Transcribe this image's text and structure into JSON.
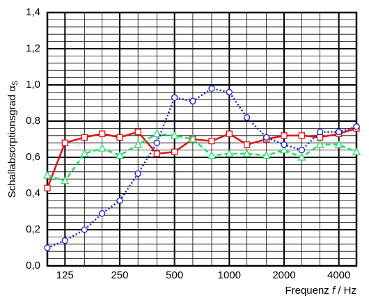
{
  "chart_data": {
    "type": "line",
    "y_label": {
      "text": "Schallabsorptionsgrad α",
      "subscript": "S"
    },
    "x_label": [
      "Frequenz ",
      "f",
      " / Hz"
    ],
    "x": [
      100,
      125,
      160,
      200,
      250,
      315,
      400,
      500,
      630,
      800,
      1000,
      1250,
      1600,
      2000,
      2500,
      3150,
      4000,
      5000
    ],
    "x_scale": "log",
    "xlim": [
      100,
      5000
    ],
    "xticks": [
      125,
      250,
      500,
      1000,
      2000,
      4000
    ],
    "ylim": [
      0,
      1.4
    ],
    "yticks": [
      {
        "value": 0,
        "label": "0,0"
      },
      {
        "value": 0.2,
        "label": "0,2"
      },
      {
        "value": 0.4,
        "label": "0,4"
      },
      {
        "value": 0.6,
        "label": "0,6"
      },
      {
        "value": 0.8,
        "label": "0,8"
      },
      {
        "value": 1.0,
        "label": "1,0"
      },
      {
        "value": 1.2,
        "label": "1,2"
      },
      {
        "value": 1.4,
        "label": "1,4"
      }
    ],
    "grid": true,
    "y_minor_divisions": 5,
    "series": [
      {
        "color": "#e01010",
        "marker": "square",
        "dash": "solid",
        "values": [
          0.43,
          0.68,
          0.71,
          0.73,
          0.71,
          0.74,
          0.62,
          0.63,
          0.7,
          0.69,
          0.73,
          0.67,
          0.7,
          0.72,
          0.72,
          0.71,
          0.73,
          0.76
        ]
      },
      {
        "color": "#22dd66",
        "marker": "triangle",
        "dash": "dashed",
        "values": [
          0.5,
          0.47,
          0.62,
          0.65,
          0.61,
          0.67,
          0.73,
          0.72,
          0.7,
          0.61,
          0.62,
          0.62,
          0.61,
          0.64,
          0.6,
          0.67,
          0.67,
          0.63
        ]
      },
      {
        "color": "#1020c0",
        "marker": "circle",
        "dash": "dotted",
        "values": [
          0.1,
          0.14,
          0.2,
          0.29,
          0.36,
          0.51,
          0.68,
          0.93,
          0.91,
          0.98,
          0.96,
          0.82,
          0.71,
          0.67,
          0.64,
          0.74,
          0.74,
          0.77
        ]
      }
    ]
  }
}
